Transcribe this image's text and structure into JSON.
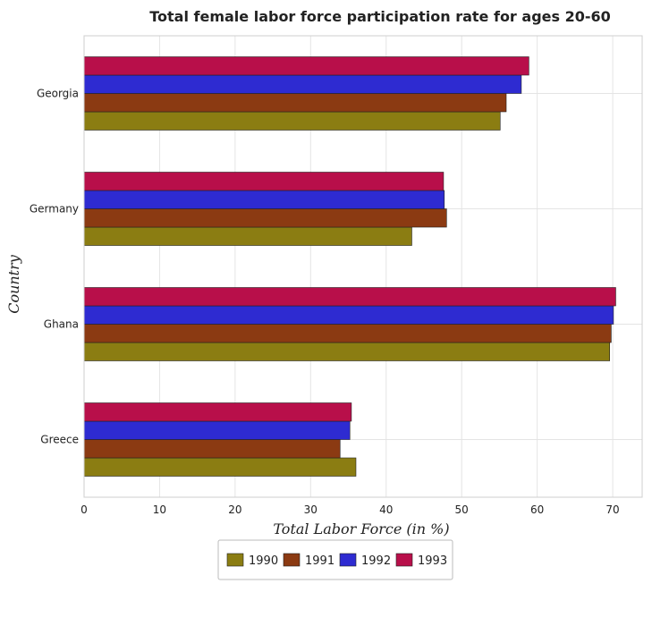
{
  "chart_data": {
    "type": "bar",
    "orientation": "horizontal",
    "title": "Total female labor force participation rate for ages 20-60",
    "xlabel": "Total Labor Force (in %)",
    "ylabel": "Country",
    "categories": [
      "Georgia",
      "Germany",
      "Ghana",
      "Greece"
    ],
    "series": [
      {
        "name": "1990",
        "color": "#8b7d12",
        "values": [
          55.1,
          43.4,
          69.6,
          36.0
        ]
      },
      {
        "name": "1991",
        "color": "#8b3a12",
        "values": [
          55.9,
          48.0,
          69.8,
          33.9
        ]
      },
      {
        "name": "1992",
        "color": "#2e2bd1",
        "values": [
          57.9,
          47.7,
          70.1,
          35.2
        ]
      },
      {
        "name": "1993",
        "color": "#b80f4a",
        "values": [
          58.9,
          47.6,
          70.4,
          35.4
        ]
      }
    ],
    "xlim": [
      0,
      73.9
    ],
    "xticks": [
      0,
      10,
      20,
      30,
      40,
      50,
      60,
      70
    ],
    "grid": true,
    "legend_position": "bottom"
  }
}
